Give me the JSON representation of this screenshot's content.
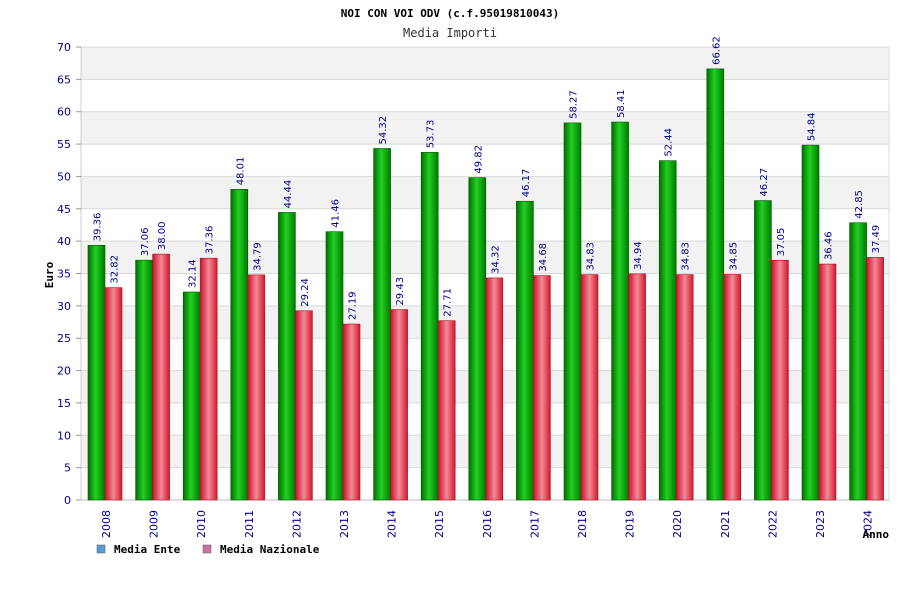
{
  "chart_data": {
    "type": "bar",
    "title": "NOI CON VOI ODV (c.f.95019810043)",
    "subtitle": "Media Importi",
    "xlabel": "Anno",
    "ylabel": "Euro",
    "ylim": [
      0,
      70
    ],
    "ytick_step": 5,
    "categories": [
      "2008",
      "2009",
      "2010",
      "2011",
      "2012",
      "2013",
      "2014",
      "2015",
      "2016",
      "2017",
      "2018",
      "2019",
      "2020",
      "2021",
      "2022",
      "2023",
      "2024"
    ],
    "series": [
      {
        "name": "Media Ente",
        "color": "#00b000",
        "legend_color": "#5b9bd5",
        "values": [
          39.36,
          37.06,
          32.14,
          48.01,
          44.44,
          41.46,
          54.32,
          53.73,
          49.82,
          46.17,
          58.27,
          58.41,
          52.44,
          66.62,
          46.27,
          54.84,
          42.85
        ],
        "labels": [
          "39.36",
          "37.06",
          "32.14",
          "48.01",
          "44.44",
          "41.46",
          "54.32",
          "53.73",
          "49.82",
          "46.17",
          "58.27",
          "58.41",
          "52.44",
          "66.62",
          "46.27",
          "54.84",
          "42.85"
        ]
      },
      {
        "name": "Media Nazionale",
        "color": "#e8404a",
        "legend_color": "#d070a0",
        "values": [
          32.82,
          38.0,
          37.36,
          34.79,
          29.24,
          27.19,
          29.43,
          27.71,
          34.32,
          34.68,
          34.83,
          34.94,
          34.83,
          34.85,
          37.05,
          36.46,
          37.49
        ],
        "labels": [
          "32.82",
          "38.00",
          "37.36",
          "34.79",
          "29.24",
          "27.19",
          "29.43",
          "27.71",
          "34.32",
          "34.68",
          "34.83",
          "34.94",
          "34.83",
          "34.85",
          "37.05",
          "36.46",
          "37.49"
        ]
      }
    ],
    "grid": true,
    "legend_position": "bottom-left"
  }
}
